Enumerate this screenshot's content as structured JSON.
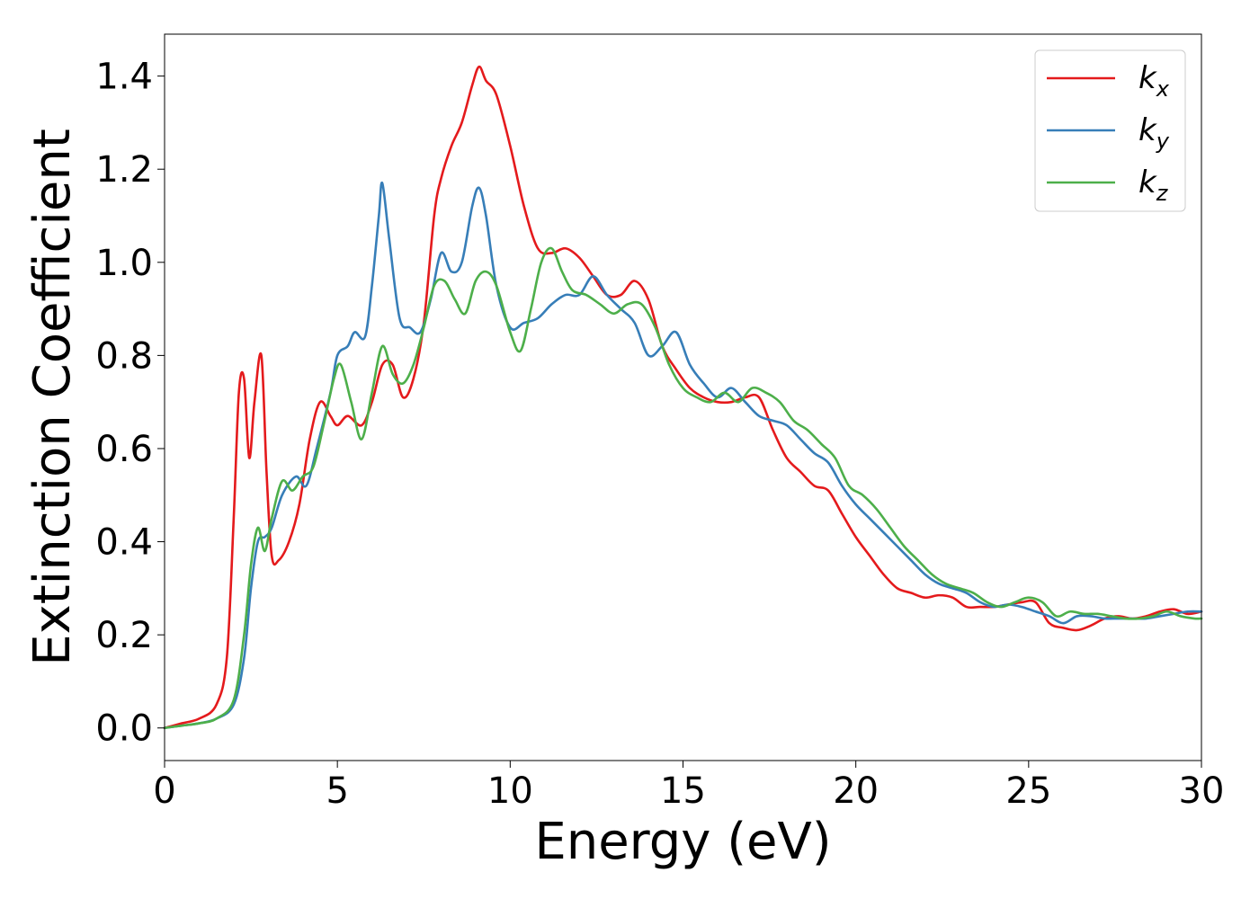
{
  "chart_data": {
    "type": "line",
    "title": "",
    "xlabel": "Energy (eV)",
    "ylabel": "Extinction Coefficient",
    "xlim": [
      0,
      30
    ],
    "ylim": [
      -0.07,
      1.49
    ],
    "xticks": [
      0,
      5,
      10,
      15,
      20,
      25,
      30
    ],
    "xtick_labels": [
      "0",
      "5",
      "10",
      "15",
      "20",
      "25",
      "30"
    ],
    "yticks": [
      0.0,
      0.2,
      0.4,
      0.6,
      0.8,
      1.0,
      1.2,
      1.4
    ],
    "ytick_labels": [
      "0.0",
      "0.2",
      "0.4",
      "0.6",
      "0.8",
      "1.0",
      "1.2",
      "1.4"
    ],
    "grid": false,
    "legend_position": "top-right",
    "series": [
      {
        "name": "k",
        "subscript": "x",
        "color": "#e41a1c",
        "x": [
          0,
          0.5,
          1.0,
          1.5,
          1.8,
          2.0,
          2.15,
          2.3,
          2.45,
          2.6,
          2.8,
          2.95,
          3.1,
          3.3,
          3.6,
          3.9,
          4.2,
          4.5,
          4.8,
          5.0,
          5.3,
          5.7,
          6.0,
          6.3,
          6.6,
          6.9,
          7.2,
          7.5,
          7.8,
          8.0,
          8.3,
          8.6,
          8.9,
          9.1,
          9.3,
          9.6,
          10.0,
          10.4,
          10.8,
          11.2,
          11.6,
          12.0,
          12.4,
          12.8,
          13.2,
          13.6,
          14.0,
          14.4,
          14.8,
          15.2,
          15.6,
          16.0,
          16.4,
          16.8,
          17.2,
          17.6,
          18.0,
          18.4,
          18.8,
          19.2,
          19.6,
          20.0,
          20.4,
          20.8,
          21.2,
          21.6,
          22.0,
          22.4,
          22.8,
          23.2,
          23.6,
          24.0,
          24.4,
          24.8,
          25.2,
          25.6,
          26.0,
          26.4,
          26.8,
          27.2,
          27.6,
          28.0,
          28.4,
          28.8,
          29.2,
          29.6,
          30.0
        ],
        "y": [
          0.0,
          0.01,
          0.02,
          0.05,
          0.15,
          0.45,
          0.72,
          0.75,
          0.58,
          0.7,
          0.8,
          0.55,
          0.37,
          0.36,
          0.4,
          0.48,
          0.62,
          0.7,
          0.67,
          0.65,
          0.67,
          0.65,
          0.7,
          0.78,
          0.78,
          0.71,
          0.75,
          0.87,
          1.1,
          1.18,
          1.25,
          1.3,
          1.38,
          1.42,
          1.39,
          1.36,
          1.25,
          1.12,
          1.03,
          1.02,
          1.03,
          1.01,
          0.97,
          0.93,
          0.93,
          0.96,
          0.92,
          0.82,
          0.77,
          0.73,
          0.71,
          0.7,
          0.7,
          0.71,
          0.71,
          0.64,
          0.58,
          0.55,
          0.52,
          0.51,
          0.46,
          0.41,
          0.37,
          0.33,
          0.3,
          0.29,
          0.28,
          0.285,
          0.28,
          0.26,
          0.26,
          0.26,
          0.265,
          0.27,
          0.27,
          0.225,
          0.215,
          0.21,
          0.22,
          0.235,
          0.24,
          0.235,
          0.24,
          0.25,
          0.255,
          0.245,
          0.25
        ]
      },
      {
        "name": "k",
        "subscript": "y",
        "color": "#377eb8",
        "x": [
          0,
          0.5,
          1.0,
          1.5,
          2.0,
          2.3,
          2.5,
          2.7,
          2.9,
          3.1,
          3.4,
          3.8,
          4.1,
          4.4,
          4.8,
          5.0,
          5.3,
          5.5,
          5.8,
          6.0,
          6.2,
          6.3,
          6.5,
          6.8,
          7.1,
          7.4,
          7.7,
          8.0,
          8.3,
          8.6,
          8.9,
          9.1,
          9.3,
          9.6,
          10.0,
          10.4,
          10.8,
          11.2,
          11.6,
          12.0,
          12.4,
          12.8,
          13.2,
          13.6,
          14.0,
          14.4,
          14.8,
          15.2,
          15.6,
          16.0,
          16.4,
          16.8,
          17.2,
          17.6,
          18.0,
          18.4,
          18.8,
          19.2,
          19.6,
          20.0,
          20.4,
          20.8,
          21.2,
          21.6,
          22.0,
          22.4,
          22.8,
          23.2,
          23.6,
          24.0,
          24.4,
          24.8,
          25.2,
          25.6,
          26.0,
          26.4,
          26.8,
          27.2,
          27.6,
          28.0,
          28.4,
          28.8,
          29.2,
          29.6,
          30.0
        ],
        "y": [
          0.0,
          0.005,
          0.01,
          0.02,
          0.05,
          0.15,
          0.3,
          0.4,
          0.41,
          0.43,
          0.5,
          0.54,
          0.52,
          0.6,
          0.72,
          0.8,
          0.82,
          0.85,
          0.84,
          0.95,
          1.1,
          1.17,
          1.05,
          0.88,
          0.86,
          0.85,
          0.92,
          1.02,
          0.98,
          1.0,
          1.12,
          1.16,
          1.1,
          0.95,
          0.86,
          0.87,
          0.88,
          0.91,
          0.93,
          0.93,
          0.97,
          0.93,
          0.9,
          0.87,
          0.8,
          0.82,
          0.85,
          0.78,
          0.74,
          0.71,
          0.73,
          0.7,
          0.67,
          0.66,
          0.65,
          0.62,
          0.59,
          0.57,
          0.52,
          0.48,
          0.45,
          0.42,
          0.39,
          0.36,
          0.33,
          0.31,
          0.3,
          0.29,
          0.27,
          0.26,
          0.265,
          0.26,
          0.25,
          0.24,
          0.225,
          0.24,
          0.24,
          0.235,
          0.235,
          0.235,
          0.235,
          0.24,
          0.245,
          0.25,
          0.25
        ]
      },
      {
        "name": "k",
        "subscript": "z",
        "color": "#4daf4a",
        "x": [
          0,
          0.5,
          1.0,
          1.5,
          2.0,
          2.3,
          2.5,
          2.7,
          2.9,
          3.1,
          3.4,
          3.7,
          4.0,
          4.3,
          4.6,
          4.9,
          5.1,
          5.4,
          5.7,
          6.0,
          6.3,
          6.6,
          6.9,
          7.2,
          7.5,
          7.8,
          8.1,
          8.4,
          8.7,
          9.0,
          9.3,
          9.6,
          10.0,
          10.3,
          10.6,
          10.9,
          11.2,
          11.5,
          11.8,
          12.2,
          12.6,
          13.0,
          13.4,
          13.8,
          14.2,
          14.6,
          15.0,
          15.4,
          15.8,
          16.2,
          16.6,
          17.0,
          17.4,
          17.8,
          18.2,
          18.6,
          19.0,
          19.4,
          19.8,
          20.2,
          20.6,
          21.0,
          21.4,
          21.8,
          22.2,
          22.6,
          23.0,
          23.4,
          23.8,
          24.2,
          24.6,
          25.0,
          25.4,
          25.8,
          26.2,
          26.6,
          27.0,
          27.4,
          27.8,
          28.2,
          28.6,
          29.0,
          29.4,
          29.8,
          30.0
        ],
        "y": [
          0.0,
          0.005,
          0.01,
          0.02,
          0.06,
          0.2,
          0.35,
          0.43,
          0.38,
          0.45,
          0.53,
          0.51,
          0.54,
          0.56,
          0.65,
          0.75,
          0.78,
          0.7,
          0.62,
          0.72,
          0.82,
          0.76,
          0.74,
          0.78,
          0.86,
          0.95,
          0.96,
          0.92,
          0.89,
          0.96,
          0.98,
          0.95,
          0.85,
          0.81,
          0.9,
          1.0,
          1.03,
          0.98,
          0.94,
          0.93,
          0.91,
          0.89,
          0.91,
          0.91,
          0.86,
          0.78,
          0.73,
          0.71,
          0.7,
          0.72,
          0.7,
          0.73,
          0.72,
          0.7,
          0.66,
          0.64,
          0.61,
          0.58,
          0.52,
          0.5,
          0.47,
          0.43,
          0.39,
          0.36,
          0.33,
          0.31,
          0.3,
          0.29,
          0.27,
          0.26,
          0.27,
          0.28,
          0.27,
          0.24,
          0.25,
          0.245,
          0.245,
          0.24,
          0.235,
          0.235,
          0.24,
          0.25,
          0.24,
          0.235,
          0.235
        ]
      }
    ]
  }
}
